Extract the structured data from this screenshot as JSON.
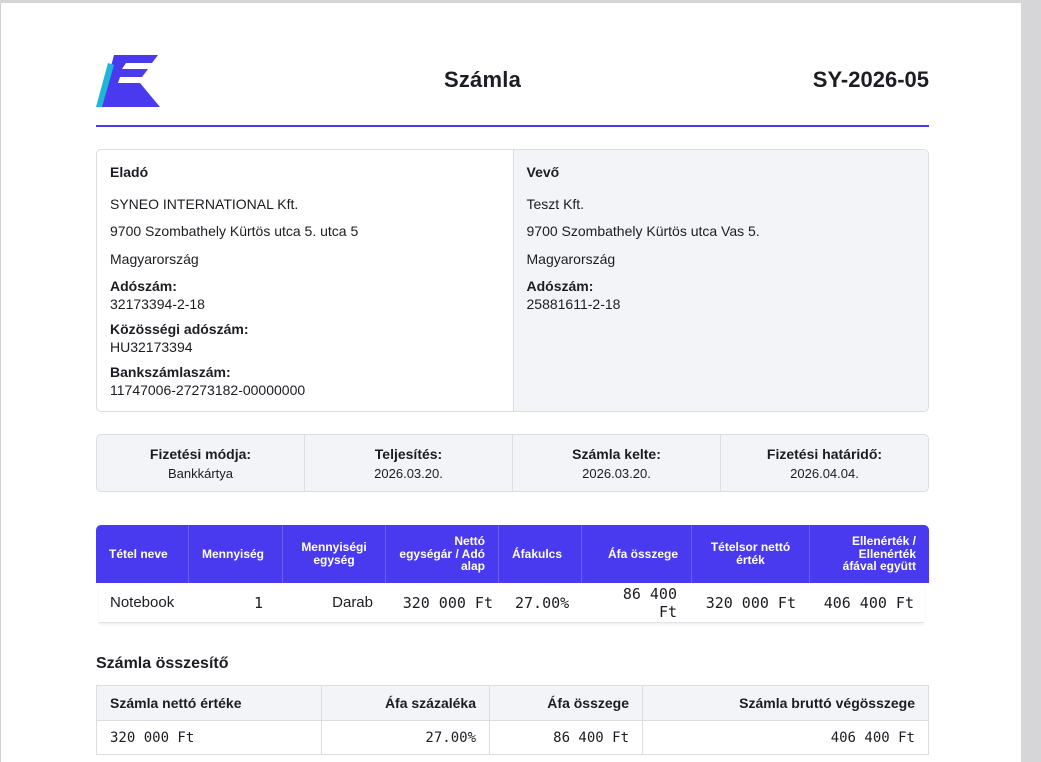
{
  "doc": {
    "title": "Számla",
    "number": "SY-2026-05",
    "accent_color": "#4a3aef",
    "logo_accent_color": "#1fb6d9"
  },
  "seller": {
    "heading": "Eladó",
    "name": "SYNEO INTERNATIONAL Kft.",
    "address": "9700 Szombathely Kürtös utca 5. utca 5",
    "country": "Magyarország",
    "tax_label": "Adószám:",
    "tax_number": "32173394-2-18",
    "eu_tax_label": "Közösségi adószám:",
    "eu_tax_number": "HU32173394",
    "bank_label": "Bankszámlaszám:",
    "bank_account": "11747006-27273182-00000000"
  },
  "buyer": {
    "heading": "Vevő",
    "name": "Teszt Kft.",
    "address": "9700 Szombathely Kürtös utca Vas 5.",
    "country": "Magyarország",
    "tax_label": "Adószám:",
    "tax_number": "25881611-2-18"
  },
  "payment": [
    {
      "label": "Fizetési módja:",
      "value": "Bankkártya"
    },
    {
      "label": "Teljesítés:",
      "value": "2026.03.20."
    },
    {
      "label": "Számla kelte:",
      "value": "2026.03.20."
    },
    {
      "label": "Fizetési határidő:",
      "value": "2026.04.04."
    }
  ],
  "items": {
    "headers": [
      "Tétel neve",
      "Mennyiség",
      "Mennyiségi egység",
      "Nettó egységár / Adó alap",
      "Áfakulcs",
      "Áfa összege",
      "Tételsor nettó érték",
      "Ellenérték / Ellenérték áfával együtt"
    ],
    "rows": [
      [
        "Notebook",
        "1",
        "Darab",
        "320 000 Ft",
        "27.00%",
        "86 400 Ft",
        "320 000 Ft",
        "406 400 Ft"
      ]
    ]
  },
  "summary": {
    "title": "Számla összesítő",
    "headers": [
      "Számla nettó értéke",
      "Áfa százaléka",
      "Áfa összege",
      "Számla bruttó végösszege"
    ],
    "values": [
      "320 000 Ft",
      "27.00%",
      "86 400 Ft",
      "406 400 Ft"
    ]
  }
}
